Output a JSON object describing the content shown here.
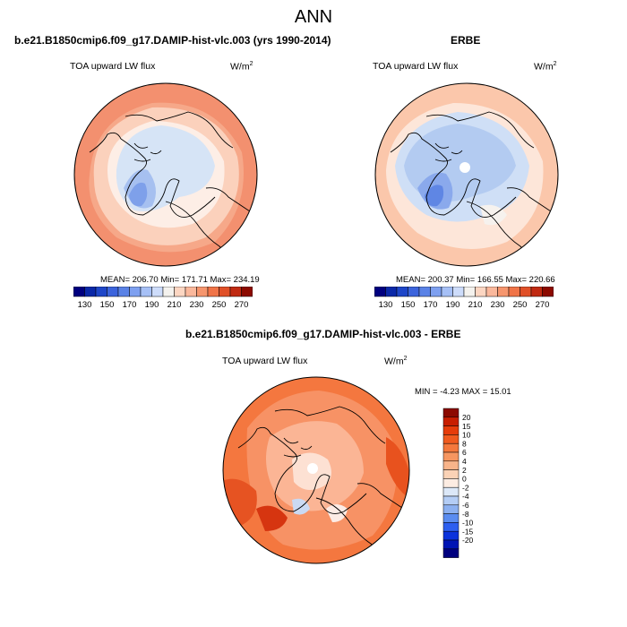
{
  "figure": {
    "title": "ANN",
    "panels": [
      {
        "id": "model",
        "title": "b.e21.B1850cmip6.f09_g17.DAMIP-hist-vlc.003 (yrs 1990-2014)",
        "variable": "TOA upward LW flux",
        "units_base": "W/m",
        "units_exp": "2",
        "stats": "MEAN= 206.70  Min= 171.71  Max= 234.19"
      },
      {
        "id": "obs",
        "title": "ERBE",
        "variable": "TOA upward LW flux",
        "units_base": "W/m",
        "units_exp": "2",
        "stats": "MEAN= 200.37  Min= 166.55  Max= 220.66"
      },
      {
        "id": "diff",
        "title": "b.e21.B1850cmip6.f09_g17.DAMIP-hist-vlc.003 - ERBE",
        "variable": "TOA upward LW flux",
        "units_base": "W/m",
        "units_exp": "2",
        "stats": "MIN =  -4.23 MAX =  15.01"
      }
    ]
  },
  "chart_data": [
    {
      "type": "heatmap",
      "projection": "north polar stereographic",
      "colorbar_orientation": "horizontal",
      "colorbar_ticks": [
        "130",
        "150",
        "170",
        "190",
        "210",
        "230",
        "250",
        "270"
      ],
      "colorbar_colors": [
        "#00007f",
        "#0a28a8",
        "#1e46c8",
        "#3c64dc",
        "#5a82e6",
        "#7ea0f0",
        "#a6c0f6",
        "#cddcfa",
        "#f4f2ee",
        "#fcd6c2",
        "#fab89c",
        "#f6966e",
        "#f07448",
        "#e05028",
        "#c02a12",
        "#8c0a00"
      ],
      "mean": 206.7,
      "min": 171.71,
      "max": 234.19
    },
    {
      "type": "heatmap",
      "projection": "north polar stereographic",
      "colorbar_orientation": "horizontal",
      "colorbar_ticks": [
        "130",
        "150",
        "170",
        "190",
        "210",
        "230",
        "250",
        "270"
      ],
      "colorbar_colors": [
        "#00007f",
        "#0a28a8",
        "#1e46c8",
        "#3c64dc",
        "#5a82e6",
        "#7ea0f0",
        "#a6c0f6",
        "#cddcfa",
        "#f4f2ee",
        "#fcd6c2",
        "#fab89c",
        "#f6966e",
        "#f07448",
        "#e05028",
        "#c02a12",
        "#8c0a00"
      ],
      "mean": 200.37,
      "min": 166.55,
      "max": 220.66
    },
    {
      "type": "heatmap",
      "projection": "north polar stereographic",
      "colorbar_orientation": "vertical",
      "colorbar_ticks": [
        "20",
        "15",
        "10",
        "8",
        "6",
        "4",
        "2",
        "0",
        "-2",
        "-4",
        "-6",
        "-8",
        "-10",
        "-15",
        "-20"
      ],
      "colorbar_colors": [
        "#8c0a00",
        "#c81e00",
        "#e63c0a",
        "#f05a1e",
        "#f4783c",
        "#f69660",
        "#f8b48a",
        "#fad2b6",
        "#fcece2",
        "#dce8f8",
        "#b4cdf5",
        "#8cb0f0",
        "#5a8cf0",
        "#2d5ff0",
        "#0a32dc",
        "#0014b4",
        "#00007f"
      ],
      "min": -4.23,
      "max": 15.01
    }
  ]
}
